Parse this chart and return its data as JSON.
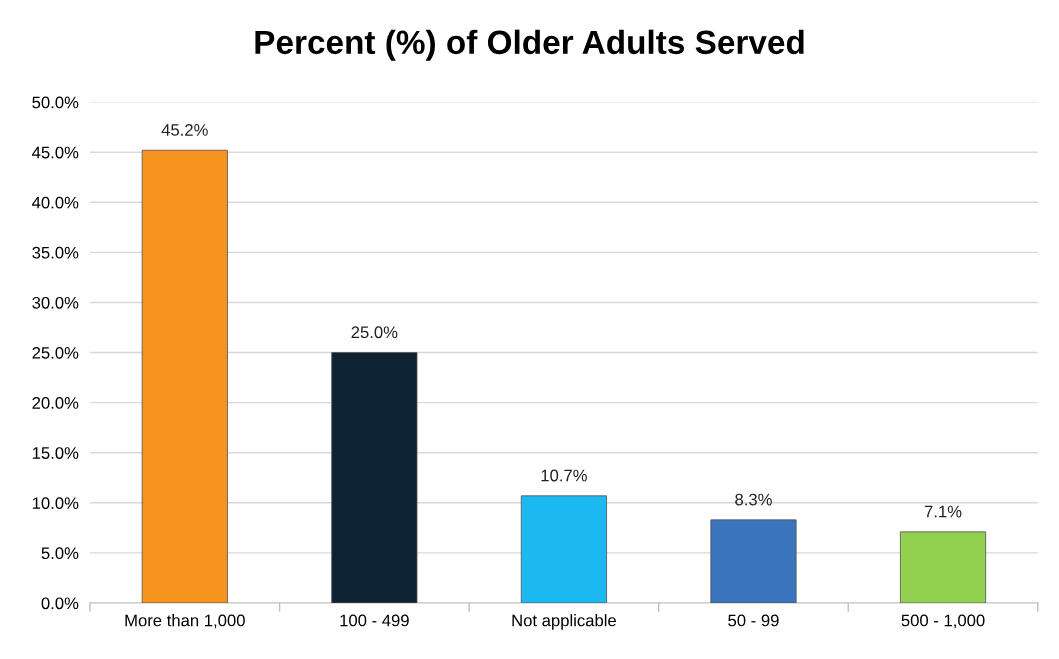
{
  "chart_data": {
    "type": "bar",
    "title": "Percent (%) of Older Adults Served",
    "categories": [
      "More than 1,000",
      "100 - 499",
      "Not applicable",
      "50 - 99",
      "500 - 1,000"
    ],
    "values": [
      45.2,
      25.0,
      10.7,
      8.3,
      7.1
    ],
    "colors": [
      "#f7941d",
      "#0d2233",
      "#1cb8f2",
      "#3a74bd",
      "#92d050"
    ],
    "value_labels": [
      "45.2%",
      "25.0%",
      "10.7%",
      "8.3%",
      "7.1%"
    ],
    "ylim": [
      0,
      50
    ],
    "yticks": [
      {
        "value": 0,
        "label": "0.0%"
      },
      {
        "value": 5,
        "label": "5.0%"
      },
      {
        "value": 10,
        "label": "10.0%"
      },
      {
        "value": 15,
        "label": "15.0%"
      },
      {
        "value": 20,
        "label": "20.0%"
      },
      {
        "value": 25,
        "label": "25.0%"
      },
      {
        "value": 30,
        "label": "30.0%"
      },
      {
        "value": 35,
        "label": "35.0%"
      },
      {
        "value": 40,
        "label": "40.0%"
      },
      {
        "value": 45,
        "label": "45.0%"
      },
      {
        "value": 50,
        "label": "50.0%"
      }
    ],
    "grid": "y"
  }
}
